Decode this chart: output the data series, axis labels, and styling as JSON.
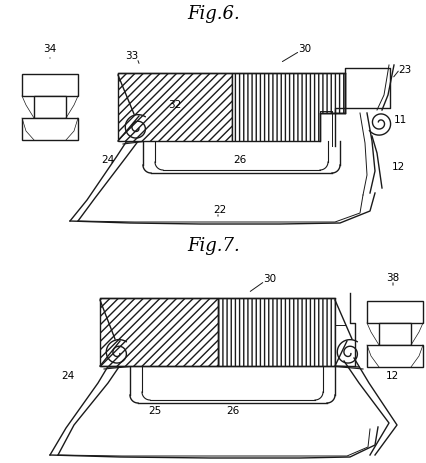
{
  "fig6_title": "Fig.6.",
  "fig7_title": "Fig.7.",
  "bg_color": "#ffffff",
  "lc": "#1a1a1a",
  "lw": 1.0,
  "fs_label": 7.5,
  "fs_title": 13
}
